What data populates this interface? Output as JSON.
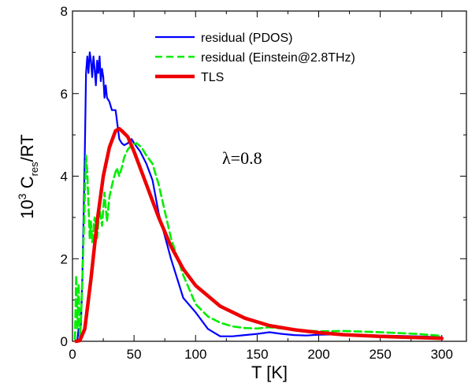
{
  "chart_data": {
    "type": "line",
    "title": "",
    "xlabel": "T  [K]",
    "ylabel": {
      "prefix": "10",
      "sup": "3",
      "main": " C",
      "sub": "res",
      "suffix": "/RT"
    },
    "xlim": [
      0,
      320
    ],
    "ylim": [
      0,
      8
    ],
    "xticks": [
      0,
      50,
      100,
      150,
      200,
      250,
      300
    ],
    "yticks": [
      0,
      2,
      4,
      6,
      8
    ],
    "grid": false,
    "legend_position": "top-center",
    "annotation": "λ=0.8",
    "series": [
      {
        "name": "residual (PDOS)",
        "color": "#0000ff",
        "dash": "solid",
        "x": [
          4,
          5,
          6,
          7,
          8,
          9,
          10,
          11,
          12,
          13,
          14,
          15,
          16,
          17,
          18,
          19,
          20,
          21,
          22,
          23,
          24,
          25,
          26,
          27,
          28,
          30,
          32,
          35,
          38,
          40,
          42,
          45,
          48,
          50,
          55,
          60,
          65,
          70,
          80,
          90,
          100,
          110,
          120,
          130,
          140,
          150,
          160,
          170,
          180,
          190,
          200,
          220,
          250,
          280,
          300
        ],
        "y": [
          0.05,
          0.3,
          0.1,
          0.5,
          1.5,
          3.0,
          4.5,
          6.5,
          6.9,
          6.5,
          7.0,
          6.8,
          6.4,
          6.9,
          6.6,
          6.2,
          6.8,
          6.5,
          6.9,
          6.3,
          6.6,
          6.4,
          5.9,
          6.2,
          5.9,
          5.8,
          5.6,
          5.6,
          4.9,
          4.8,
          4.75,
          4.8,
          4.9,
          4.8,
          4.6,
          4.3,
          3.9,
          3.1,
          2.0,
          1.05,
          0.7,
          0.3,
          0.12,
          0.12,
          0.15,
          0.18,
          0.22,
          0.18,
          0.15,
          0.14,
          0.16,
          0.17,
          0.14,
          0.12,
          0.1
        ]
      },
      {
        "name": "residual (Einstein@2.8THz)",
        "color": "#00ee00",
        "dash": "dashed",
        "x": [
          2,
          3,
          4,
          5,
          6,
          7,
          8,
          9,
          10,
          11,
          12,
          13,
          14,
          15,
          16,
          18,
          20,
          22,
          24,
          26,
          28,
          30,
          33,
          36,
          38,
          40,
          42,
          45,
          48,
          52,
          56,
          60,
          65,
          70,
          80,
          90,
          100,
          110,
          120,
          130,
          140,
          150,
          160,
          180,
          200,
          220,
          250,
          280,
          300
        ],
        "y": [
          0.05,
          1.6,
          0.3,
          1.4,
          0.1,
          0.6,
          1.5,
          2.5,
          3.5,
          4.5,
          4.1,
          3.3,
          2.5,
          2.9,
          2.4,
          3.0,
          2.5,
          3.2,
          2.8,
          3.6,
          2.9,
          3.5,
          3.9,
          4.2,
          4.0,
          4.2,
          4.45,
          4.65,
          4.75,
          4.8,
          4.7,
          4.5,
          4.3,
          3.8,
          2.5,
          1.6,
          0.9,
          0.6,
          0.45,
          0.36,
          0.32,
          0.31,
          0.34,
          0.28,
          0.24,
          0.25,
          0.22,
          0.18,
          0.13
        ]
      },
      {
        "name": "TLS",
        "color": "#ee0000",
        "dash": "solid",
        "x": [
          3,
          6,
          10,
          15,
          20,
          25,
          30,
          35,
          38,
          40,
          45,
          50,
          60,
          70,
          80,
          90,
          100,
          120,
          140,
          160,
          180,
          200,
          220,
          250,
          280,
          300
        ],
        "y": [
          0.0,
          0.02,
          0.3,
          1.5,
          2.9,
          4.0,
          4.7,
          5.1,
          5.15,
          5.1,
          4.95,
          4.6,
          3.8,
          3.0,
          2.3,
          1.75,
          1.35,
          0.85,
          0.56,
          0.38,
          0.28,
          0.21,
          0.16,
          0.12,
          0.09,
          0.07
        ]
      }
    ]
  }
}
